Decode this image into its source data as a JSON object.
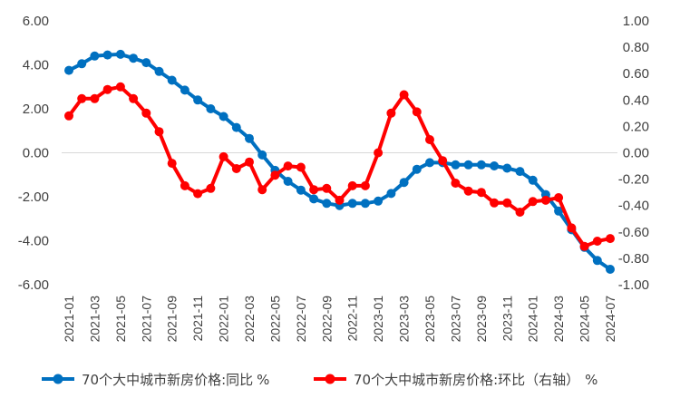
{
  "chart_data": {
    "type": "line",
    "x": [
      "2021-01",
      "2021-02",
      "2021-03",
      "2021-04",
      "2021-05",
      "2021-06",
      "2021-07",
      "2021-08",
      "2021-09",
      "2021-10",
      "2021-11",
      "2021-12",
      "2022-01",
      "2022-02",
      "2022-03",
      "2022-04",
      "2022-05",
      "2022-06",
      "2022-07",
      "2022-08",
      "2022-09",
      "2022-10",
      "2022-11",
      "2022-12",
      "2023-01",
      "2023-02",
      "2023-03",
      "2023-04",
      "2023-05",
      "2023-06",
      "2023-07",
      "2023-08",
      "2023-09",
      "2023-10",
      "2023-11",
      "2023-12",
      "2024-01",
      "2024-02",
      "2024-03",
      "2024-04",
      "2024-05",
      "2024-06",
      "2024-07"
    ],
    "x_tick_labels": [
      "2021-01",
      "2021-03",
      "2021-05",
      "2021-07",
      "2021-09",
      "2021-11",
      "2022-01",
      "2022-03",
      "2022-05",
      "2022-07",
      "2022-09",
      "2022-11",
      "2023-01",
      "2023-03",
      "2023-05",
      "2023-07",
      "2023-09",
      "2023-11",
      "2024-01",
      "2024-03",
      "2024-05",
      "2024-07"
    ],
    "y_left": {
      "ylim": [
        -6,
        6
      ],
      "ticks": [
        "6.00",
        "4.00",
        "2.00",
        "0.00",
        "-2.00",
        "-4.00",
        "-6.00"
      ],
      "tick_values": [
        6,
        4,
        2,
        0,
        -2,
        -4,
        -6
      ]
    },
    "y_right": {
      "ylim": [
        -1,
        1
      ],
      "ticks": [
        "1.00",
        "0.80",
        "0.60",
        "0.40",
        "0.20",
        "0.00",
        "-0.20",
        "-0.40",
        "-0.60",
        "-0.80",
        "-1.00"
      ],
      "tick_values": [
        1,
        0.8,
        0.6,
        0.4,
        0.2,
        0,
        -0.2,
        -0.4,
        -0.6,
        -0.8,
        -1
      ]
    },
    "series": [
      {
        "name": "70个大中城市新房价格:同比",
        "legend_suffix": "%",
        "axis": "left",
        "color": "#0070c0",
        "values": [
          3.75,
          4.05,
          4.4,
          4.45,
          4.48,
          4.3,
          4.1,
          3.7,
          3.3,
          2.85,
          2.4,
          2.0,
          1.65,
          1.15,
          0.65,
          -0.1,
          -0.8,
          -1.3,
          -1.7,
          -2.1,
          -2.3,
          -2.4,
          -2.3,
          -2.3,
          -2.2,
          -1.85,
          -1.35,
          -0.75,
          -0.45,
          -0.45,
          -0.55,
          -0.55,
          -0.55,
          -0.6,
          -0.7,
          -0.85,
          -1.25,
          -1.9,
          -2.65,
          -3.5,
          -4.3,
          -4.9,
          -5.3
        ]
      },
      {
        "name": "70个大中城市新房价格:环比（右轴）",
        "legend_suffix": "%",
        "axis": "right",
        "color": "#ff0000",
        "values": [
          0.28,
          0.41,
          0.41,
          0.48,
          0.5,
          0.41,
          0.3,
          0.16,
          -0.08,
          -0.25,
          -0.31,
          -0.27,
          -0.03,
          -0.12,
          -0.07,
          -0.28,
          -0.17,
          -0.1,
          -0.11,
          -0.28,
          -0.27,
          -0.36,
          -0.25,
          -0.25,
          0.0,
          0.3,
          0.44,
          0.31,
          0.1,
          -0.06,
          -0.23,
          -0.29,
          -0.3,
          -0.38,
          -0.38,
          -0.45,
          -0.37,
          -0.36,
          -0.34,
          -0.57,
          -0.71,
          -0.67,
          -0.65
        ]
      }
    ],
    "grid": false,
    "legend_position": "bottom"
  }
}
